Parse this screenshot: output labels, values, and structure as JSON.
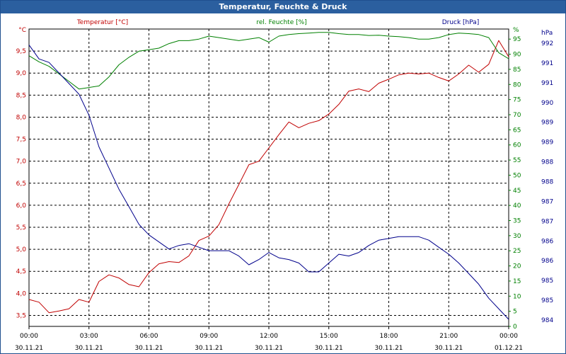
{
  "window": {
    "title": "Temperatur, Feuchte & Druck"
  },
  "colors": {
    "temperature": "#c00000",
    "humidity": "#008000",
    "pressure": "#00008b",
    "grid": "#000000",
    "titlebar": "#2b5f9f"
  },
  "chart_data": {
    "type": "line",
    "title": "Temperatur, Feuchte & Druck",
    "grid": true,
    "x": [
      0,
      0.5,
      1,
      1.5,
      2,
      2.5,
      3,
      3.5,
      4,
      4.5,
      5,
      5.5,
      6,
      6.5,
      7,
      7.5,
      8,
      8.5,
      9,
      9.5,
      10,
      10.5,
      11,
      11.5,
      12,
      12.5,
      13,
      13.5,
      14,
      14.5,
      15,
      15.5,
      16,
      16.5,
      17,
      17.5,
      18,
      18.5,
      19,
      19.5,
      20,
      20.5,
      21,
      21.5,
      22,
      22.5,
      23,
      23.5,
      24
    ],
    "x_unit": "hours",
    "x_ticks": [
      {
        "pos": 0,
        "time": "00:00",
        "date": "30.11.21"
      },
      {
        "pos": 3,
        "time": "03:00",
        "date": "30.11.21"
      },
      {
        "pos": 6,
        "time": "06:00",
        "date": "30.11.21"
      },
      {
        "pos": 9,
        "time": "09:00",
        "date": "30.11.21"
      },
      {
        "pos": 12,
        "time": "12:00",
        "date": "30.11.21"
      },
      {
        "pos": 15,
        "time": "15:00",
        "date": "30.11.21"
      },
      {
        "pos": 18,
        "time": "18:00",
        "date": "30.11.21"
      },
      {
        "pos": 21,
        "time": "21:00",
        "date": "30.11.21"
      },
      {
        "pos": 24,
        "time": "00:00",
        "date": "01.12.21"
      }
    ],
    "axes": {
      "left": {
        "label": "Temperatur [°C]",
        "unit": "°C",
        "range": [
          3.25,
          10.0
        ],
        "ticks": [
          3.5,
          4.0,
          4.5,
          5.0,
          5.5,
          6.0,
          6.5,
          7.0,
          7.5,
          8.0,
          8.5,
          9.0,
          9.5
        ],
        "tick_labels": [
          "3,5",
          "4,0",
          "4,5",
          "5,0",
          "5,5",
          "6,0",
          "6,5",
          "7,0",
          "7,5",
          "8,0",
          "8,5",
          "9,0",
          "9,5"
        ]
      },
      "right_inner": {
        "label": "rel. Feuchte [%]",
        "unit": "%",
        "range": [
          0,
          98.33
        ],
        "ticks": [
          0,
          5,
          10,
          15,
          20,
          25,
          30,
          35,
          40,
          45,
          50,
          55,
          60,
          65,
          70,
          75,
          80,
          85,
          90,
          95
        ],
        "tick_labels": [
          "0",
          "5",
          "10",
          "15",
          "20",
          "25",
          "30",
          "35",
          "40",
          "45",
          "50",
          "55",
          "60",
          "65",
          "70",
          "75",
          "80",
          "85",
          "90",
          "95"
        ]
      },
      "right_outer": {
        "label": "Druck [hPa]",
        "unit": "hPa",
        "range": [
          983.9,
          992.35
        ],
        "tick_labels": [
          "992",
          "991",
          "991",
          "990",
          "989",
          "989",
          "988",
          "988",
          "987",
          "987",
          "986",
          "986",
          "985",
          "985",
          "984"
        ]
      }
    },
    "series": [
      {
        "name": "Temperatur [°C]",
        "axis": "left",
        "color": "#c00000",
        "values": [
          3.86,
          3.8,
          3.56,
          3.6,
          3.65,
          3.86,
          3.8,
          4.27,
          4.42,
          4.35,
          4.2,
          4.15,
          4.47,
          4.67,
          4.72,
          4.7,
          4.85,
          5.2,
          5.3,
          5.56,
          6.03,
          6.47,
          6.92,
          7.0,
          7.3,
          7.6,
          7.89,
          7.76,
          7.86,
          7.92,
          8.07,
          8.29,
          8.59,
          8.64,
          8.58,
          8.77,
          8.86,
          8.96,
          9.0,
          8.98,
          9.0,
          8.9,
          8.82,
          8.98,
          9.18,
          9.02,
          9.2,
          9.74,
          9.37
        ]
      },
      {
        "name": "rel. Feuchte [%]",
        "axis": "right_inner",
        "color": "#008000",
        "values": [
          89.5,
          87.5,
          86.0,
          83.5,
          81.0,
          78.5,
          79.0,
          79.5,
          82.5,
          86.5,
          89.0,
          91.0,
          91.5,
          92.0,
          93.5,
          94.5,
          94.5,
          95.0,
          96.0,
          95.5,
          95.0,
          94.5,
          95.0,
          95.5,
          94.0,
          96.0,
          96.5,
          96.8,
          97.0,
          97.2,
          97.2,
          96.8,
          96.5,
          96.5,
          96.2,
          96.3,
          96.0,
          95.8,
          95.5,
          95.0,
          95.0,
          95.5,
          96.5,
          97.0,
          96.8,
          96.5,
          95.5,
          90.5,
          88.5
        ]
      },
      {
        "name": "Druck [hPa]",
        "axis": "right_outer",
        "color": "#00008b",
        "values": [
          991.9,
          991.5,
          991.4,
          991.1,
          990.8,
          990.5,
          989.9,
          989.0,
          988.4,
          987.8,
          987.3,
          986.8,
          986.5,
          986.3,
          986.1,
          986.2,
          986.25,
          986.15,
          986.05,
          986.05,
          986.05,
          985.9,
          985.65,
          985.8,
          986.0,
          985.85,
          985.8,
          985.7,
          985.45,
          985.45,
          985.7,
          985.95,
          985.9,
          986.0,
          986.2,
          986.35,
          986.4,
          986.45,
          986.45,
          986.45,
          986.35,
          986.15,
          985.95,
          985.7,
          985.4,
          985.1,
          984.7,
          984.4,
          984.1
        ]
      }
    ]
  }
}
